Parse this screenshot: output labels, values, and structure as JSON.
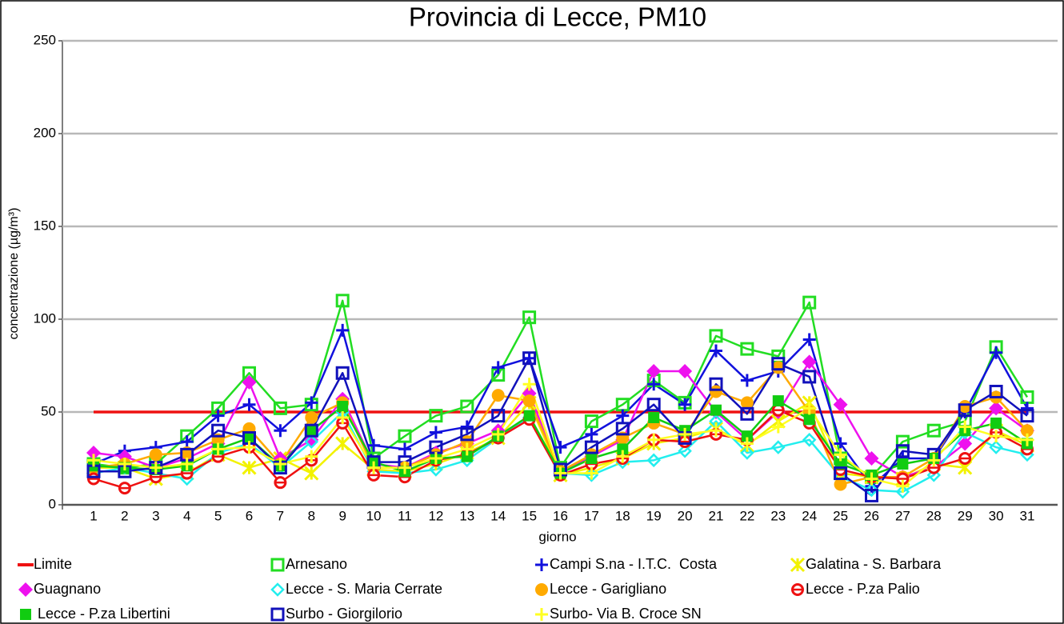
{
  "chart_data": {
    "type": "line",
    "title": "Provincia di Lecce, PM10",
    "x_label": "giorno",
    "y_label": "concentrazione (µg/m³)",
    "categories": [
      "1",
      "2",
      "3",
      "4",
      "5",
      "6",
      "7",
      "8",
      "9",
      "10",
      "11",
      "12",
      "13",
      "14",
      "15",
      "16",
      "17",
      "18",
      "19",
      "20",
      "21",
      "22",
      "23",
      "24",
      "25",
      "26",
      "27",
      "28",
      "29",
      "30",
      "31"
    ],
    "ylim": [
      0,
      250
    ],
    "yticks": [
      0,
      50,
      100,
      150,
      200,
      250
    ],
    "grid": true,
    "legend": "bottom",
    "series": [
      {
        "name": "Limite",
        "color": "#ee1111",
        "marker": "none",
        "values": [
          50,
          50,
          50,
          50,
          50,
          50,
          50,
          50,
          50,
          50,
          50,
          50,
          50,
          50,
          50,
          50,
          50,
          50,
          50,
          50,
          50,
          50,
          50,
          50,
          50,
          50,
          50,
          50,
          50,
          50,
          50
        ]
      },
      {
        "name": "Arnesano",
        "color": "#22dd22",
        "marker": "square-open",
        "values": [
          22,
          20,
          22,
          37,
          52,
          71,
          52,
          54,
          110,
          25,
          37,
          48,
          53,
          70,
          101,
          20,
          45,
          54,
          67,
          55,
          91,
          84,
          80,
          109,
          25,
          15,
          34,
          40,
          45,
          85,
          58
        ]
      },
      {
        "name": "Campi S.na - I.T.C.  Costa",
        "color": "#1111dd",
        "marker": "plus",
        "values": [
          22,
          29,
          31,
          34,
          48,
          54,
          40,
          55,
          94,
          32,
          30,
          39,
          42,
          74,
          79,
          31,
          38,
          48,
          65,
          54,
          83,
          67,
          72,
          89,
          33,
          10,
          25,
          25,
          50,
          82,
          52
        ]
      },
      {
        "name": "Galatina - S. Barbara",
        "color": "#f2f200",
        "marker": "star",
        "values": [
          20,
          20,
          14,
          17,
          27,
          20,
          25,
          17,
          33,
          19,
          18,
          22,
          28,
          36,
          55,
          16,
          20,
          25,
          33,
          36,
          41,
          32,
          45,
          55,
          17,
          15,
          14,
          22,
          20,
          40,
          32
        ]
      },
      {
        "name": "Guagnano",
        "color": "#ee11ee",
        "marker": "diamond",
        "values": [
          28,
          26,
          20,
          25,
          33,
          66,
          25,
          35,
          57,
          22,
          20,
          28,
          33,
          40,
          60,
          17,
          26,
          35,
          72,
          72,
          50,
          35,
          50,
          77,
          54,
          25,
          15,
          20,
          33,
          52,
          40
        ]
      },
      {
        "name": "Lecce - S. Maria Cerrate",
        "color": "#22eeee",
        "marker": "diamond-open",
        "values": [
          17,
          20,
          17,
          14,
          28,
          33,
          20,
          34,
          50,
          18,
          17,
          19,
          24,
          36,
          47,
          17,
          16,
          23,
          24,
          29,
          45,
          28,
          31,
          35,
          15,
          8,
          7,
          16,
          39,
          31,
          27
        ]
      },
      {
        "name": "Lecce - Garigliano",
        "color": "#ffaa00",
        "marker": "circle",
        "values": [
          20,
          22,
          27,
          28,
          35,
          41,
          22,
          47,
          55,
          20,
          20,
          27,
          34,
          59,
          56,
          18,
          27,
          36,
          44,
          38,
          61,
          55,
          74,
          50,
          11,
          15,
          15,
          25,
          53,
          58,
          40
        ]
      },
      {
        "name": "Lecce - P.za Palio",
        "color": "#ee1111",
        "marker": "circle-bar",
        "values": [
          14,
          9,
          15,
          17,
          26,
          31,
          12,
          24,
          44,
          16,
          15,
          24,
          27,
          36,
          46,
          16,
          22,
          25,
          35,
          34,
          38,
          35,
          51,
          44,
          19,
          15,
          14,
          20,
          25,
          39,
          30
        ]
      },
      {
        "name": " Lecce - P.za Libertini",
        "color": "#11cc11",
        "marker": "square",
        "values": [
          21,
          20,
          19,
          21,
          30,
          36,
          21,
          40,
          53,
          23,
          18,
          25,
          26,
          37,
          48,
          17,
          25,
          30,
          47,
          40,
          51,
          37,
          56,
          46,
          22,
          16,
          22,
          25,
          40,
          44,
          33
        ]
      },
      {
        "name": "Surbo - Giorgilorio",
        "color": "#1111bb",
        "marker": "square-open",
        "values": [
          18,
          18,
          20,
          27,
          40,
          36,
          20,
          40,
          71,
          23,
          23,
          31,
          38,
          48,
          79,
          19,
          31,
          41,
          54,
          36,
          65,
          49,
          76,
          69,
          17,
          5,
          29,
          27,
          51,
          61,
          48
        ]
      },
      {
        "name": "Surbo- Via B. Croce SN",
        "color": "#ffff22",
        "marker": "plus",
        "values": [
          24,
          22,
          20,
          22,
          30,
          31,
          22,
          26,
          47,
          20,
          20,
          25,
          30,
          38,
          65,
          17,
          17,
          26,
          35,
          38,
          40,
          33,
          42,
          52,
          27,
          14,
          10,
          24,
          42,
          37,
          35
        ]
      }
    ]
  }
}
